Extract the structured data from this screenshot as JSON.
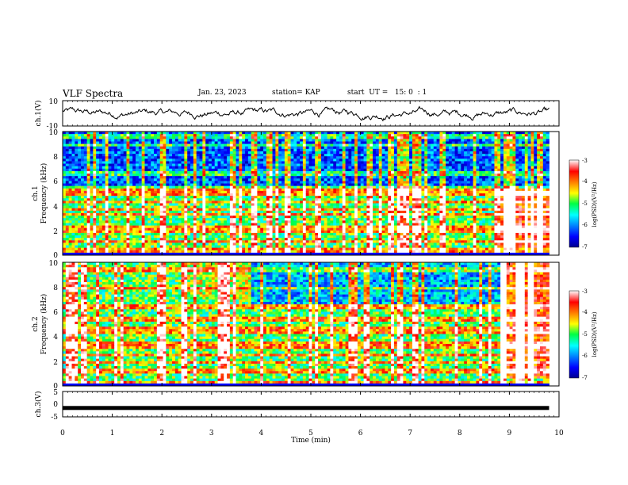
{
  "header": {
    "title": "VLF Spectra",
    "date": "Jan. 23, 2023",
    "station": "station= KAP",
    "start": "start  UT =   15: 0  : 1"
  },
  "panels": {
    "ch1_wave": {
      "ylabel": "ch.1(V)",
      "ticks": [
        "10",
        "-10"
      ]
    },
    "ch1_spec": {
      "ylabel": "ch.1\nFrequency (kHz)",
      "ylabel_a": "ch.1",
      "ylabel_b": "Frequency (kHz)",
      "ticks": [
        "0",
        "2",
        "4",
        "6",
        "8",
        "10"
      ]
    },
    "ch2_spec": {
      "ylabel_a": "ch.2",
      "ylabel_b": "Frequency (kHz)",
      "ticks": [
        "0",
        "2",
        "4",
        "6",
        "8",
        "10"
      ]
    },
    "ch3_wave": {
      "ylabel": "ch.3(V)",
      "ticks": [
        "5",
        "0",
        "-5"
      ]
    },
    "colorbar": {
      "label": "log(PSD)(V²/Hz)",
      "ticks": [
        "-3",
        "-4",
        "-5",
        "-6",
        "-7"
      ]
    }
  },
  "chart_data": [
    {
      "type": "line",
      "title": "ch.1 waveform",
      "ylabel": "ch.1(V)",
      "ylim": [
        -10,
        10
      ],
      "xlim": [
        0,
        10
      ],
      "description_values": "quasi-random oscillation between about -9 and 9 V"
    },
    {
      "type": "heatmap",
      "ylabel": "ch.1 Frequency (kHz)",
      "xlabel": "Time (min)",
      "xlim": [
        0,
        10
      ],
      "ylim": [
        0,
        10
      ],
      "colorbar": {
        "label": "log(PSD)(V²/Hz)",
        "range": [
          -7,
          -3
        ]
      },
      "features": [
        {
          "freq_range_khz": [
            5.5,
            10
          ],
          "time_range_min": [
            0,
            9.8
          ],
          "level": -6.3
        },
        {
          "freq_range_khz": [
            0,
            5.5
          ],
          "time_range_min": [
            0,
            9.8
          ],
          "level": -5.0
        },
        {
          "freq_range_khz": [
            0.6,
            5.2
          ],
          "time_range_min": [
            8.8,
            9.8
          ],
          "level": -3.5
        }
      ]
    },
    {
      "type": "heatmap",
      "ylabel": "ch.2 Frequency (kHz)",
      "xlabel": "Time (min)",
      "xlim": [
        0,
        10
      ],
      "ylim": [
        0,
        10
      ],
      "colorbar": {
        "label": "log(PSD)(V²/Hz)",
        "range": [
          -7,
          -3
        ]
      },
      "features": [
        {
          "freq_range_khz": [
            0,
            10
          ],
          "time_range_min": [
            0,
            9.8
          ],
          "level": -5.0
        },
        {
          "freq_range_khz": [
            6.5,
            10
          ],
          "time_range_min": [
            3.8,
            8.8
          ],
          "level": -5.8
        },
        {
          "freq_range_khz": [
            0.6,
            10
          ],
          "time_range_min": [
            8.8,
            9.8
          ],
          "level": -3.5
        }
      ]
    },
    {
      "type": "line",
      "title": "ch.3 waveform",
      "ylabel": "ch.3(V)",
      "ylim": [
        -5,
        5
      ],
      "xlim": [
        0,
        10
      ],
      "x": [
        0,
        9.8
      ],
      "y": [
        -1.5,
        -1.5
      ]
    }
  ],
  "xaxis": {
    "label": "Time (min)",
    "ticks": [
      "0",
      "1",
      "2",
      "3",
      "4",
      "5",
      "6",
      "7",
      "8",
      "9",
      "10"
    ]
  }
}
